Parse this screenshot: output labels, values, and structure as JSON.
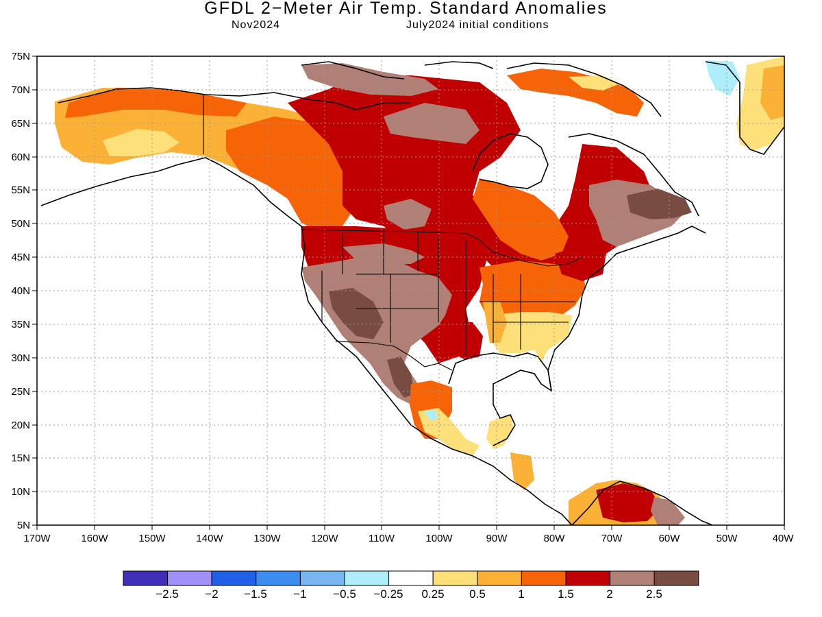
{
  "header": {
    "title": "GFDL 2−Meter Air Temp. Standard Anomalies",
    "valid_month": "Nov2024",
    "initial_conditions": "July2024 initial conditions"
  },
  "map": {
    "lat_ticks": [
      "75N",
      "70N",
      "65N",
      "60N",
      "55N",
      "50N",
      "45N",
      "40N",
      "35N",
      "30N",
      "25N",
      "20N",
      "15N",
      "10N",
      "5N"
    ],
    "lon_ticks": [
      "170W",
      "160W",
      "150W",
      "140W",
      "130W",
      "120W",
      "110W",
      "100W",
      "90W",
      "80W",
      "70W",
      "60W",
      "50W",
      "40W"
    ],
    "gridlines": true,
    "land_color": "#ffffff",
    "coast_color": "#000000"
  },
  "legend": {
    "labels": [
      "−2.5",
      "−2",
      "−1.5",
      "−1",
      "−0.5",
      "−0.25",
      "0.25",
      "0.5",
      "1",
      "1.5",
      "2",
      "2.5"
    ],
    "colors": [
      "#3f2fb8",
      "#9f8ff7",
      "#1f60e6",
      "#3b8ef0",
      "#78b6f2",
      "#aeeefb",
      "#ffffff",
      "#fde07a",
      "#fbb135",
      "#f66407",
      "#c00000",
      "#b07f75",
      "#784c40"
    ]
  }
}
